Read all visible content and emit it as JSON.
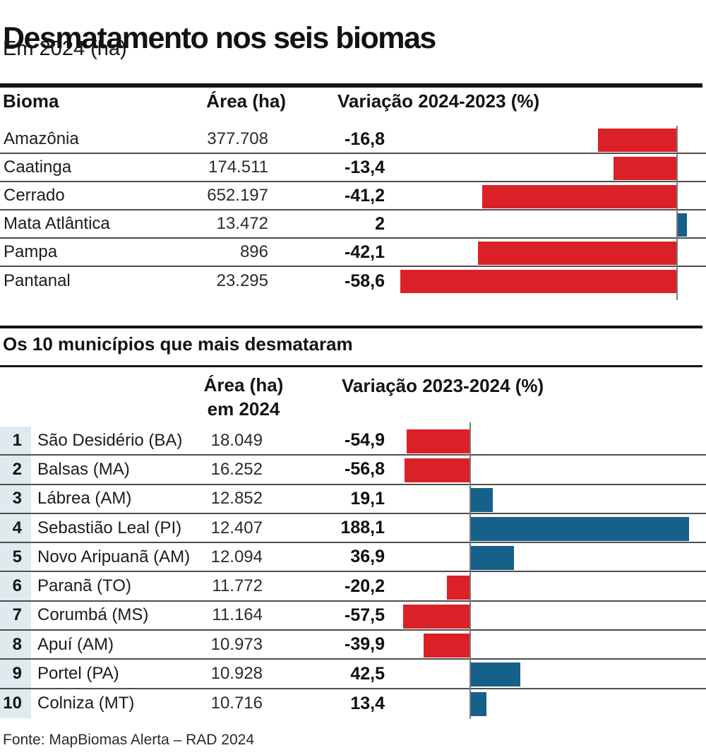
{
  "title": "Desmatamento nos seis biomas",
  "subtitle": "Em 2024 (ha)",
  "footer": {
    "source": "Fonte: MapBiomas Alerta – RAD 2024"
  },
  "colors": {
    "negative_bar": "#da2128",
    "positive_bar": "#166189",
    "rank_stripe": "#dfe9ee",
    "rule": "#141414"
  },
  "chart_data": [
    {
      "type": "bar",
      "orientation": "horizontal",
      "title": "Desmatamento nos seis biomas",
      "subtitle": "Em 2024 (ha)",
      "columns": [
        "Bioma",
        "Área (ha)",
        "Variação 2024-2023 (%)"
      ],
      "xlim": [
        -60,
        6
      ],
      "zero_baseline": true,
      "rows": [
        {
          "label": "Amazônia",
          "area": "377.708",
          "variation": "-16,8",
          "value": -16.8
        },
        {
          "label": "Caatinga",
          "area": "174.511",
          "variation": "-13,4",
          "value": -13.4
        },
        {
          "label": "Cerrado",
          "area": "652.197",
          "variation": "-41,2",
          "value": -41.2
        },
        {
          "label": "Mata Atlântica",
          "area": "13.472",
          "variation": "2",
          "value": 2
        },
        {
          "label": "Pampa",
          "area": "896",
          "variation": "-42,1",
          "value": -42.1
        },
        {
          "label": "Pantanal",
          "area": "23.295",
          "variation": "-58,6",
          "value": -58.6
        }
      ]
    },
    {
      "type": "bar",
      "orientation": "horizontal",
      "title": "Os 10 municípios que mais desmataram",
      "columns": [
        "Área (ha) em 2024",
        "Variação 2023-2024 (%)"
      ],
      "headers": {
        "area_line1": "Área (ha)",
        "area_line2": "em 2024",
        "variation": "Variação 2023-2024 (%)"
      },
      "xlim": [
        -60,
        190
      ],
      "zero_baseline": true,
      "rows": [
        {
          "rank": "1",
          "label": "São Desidério (BA)",
          "area": "18.049",
          "variation": "-54,9",
          "value": -54.9
        },
        {
          "rank": "2",
          "label": "Balsas (MA)",
          "area": "16.252",
          "variation": "-56,8",
          "value": -56.8
        },
        {
          "rank": "3",
          "label": "Lábrea (AM)",
          "area": "12.852",
          "variation": "19,1",
          "value": 19.1
        },
        {
          "rank": "4",
          "label": "Sebastião Leal (PI)",
          "area": "12.407",
          "variation": "188,1",
          "value": 188.1
        },
        {
          "rank": "5",
          "label": "Novo Aripuanã (AM)",
          "area": "12.094",
          "variation": "36,9",
          "value": 36.9
        },
        {
          "rank": "6",
          "label": "Paranã (TO)",
          "area": "11.772",
          "variation": "-20,2",
          "value": -20.2
        },
        {
          "rank": "7",
          "label": "Corumbá (MS)",
          "area": "11.164",
          "variation": "-57,5",
          "value": -57.5
        },
        {
          "rank": "8",
          "label": "Apuí (AM)",
          "area": "10.973",
          "variation": "-39,9",
          "value": -39.9
        },
        {
          "rank": "9",
          "label": "Portel (PA)",
          "area": "10.928",
          "variation": "42,5",
          "value": 42.5
        },
        {
          "rank": "10",
          "label": "Colniza (MT)",
          "area": "10.716",
          "variation": "13,4",
          "value": 13.4
        }
      ]
    }
  ]
}
